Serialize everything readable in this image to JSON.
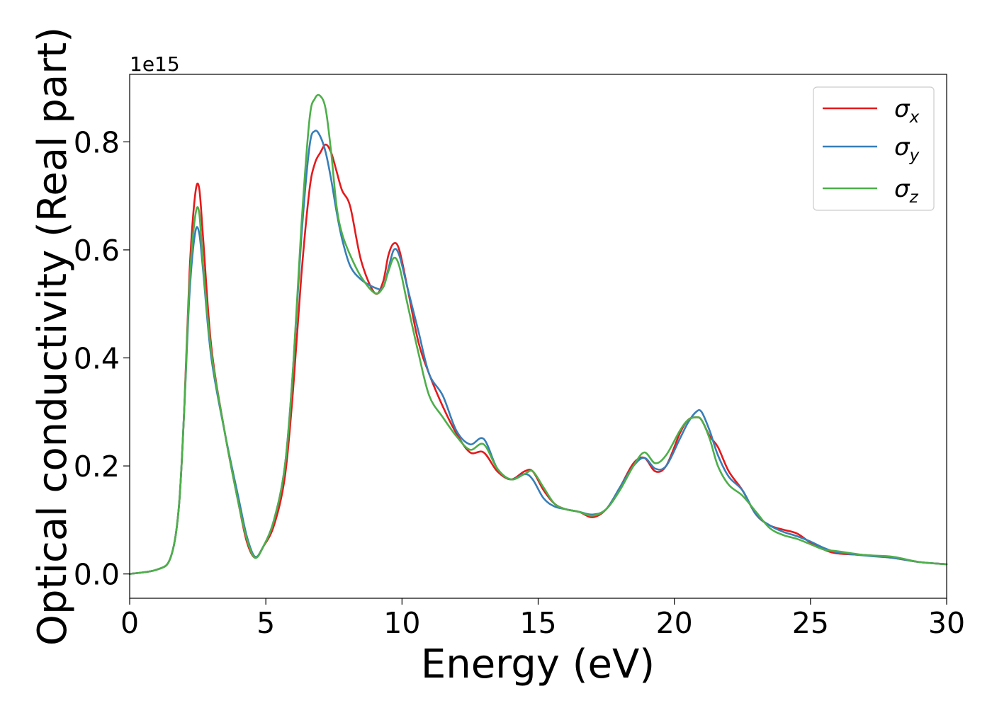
{
  "chart_data": {
    "type": "line",
    "title": "",
    "xlabel": "Energy (eV)",
    "ylabel": "Optical conductivity (Real part)",
    "y_offset_label": "1e15",
    "xlim": [
      0,
      30
    ],
    "ylim": [
      -0.045,
      0.925
    ],
    "x_ticks": [
      0,
      5,
      10,
      15,
      20,
      25,
      30
    ],
    "y_ticks": [
      0.0,
      0.2,
      0.4,
      0.6,
      0.8
    ],
    "x_tick_labels": [
      "0",
      "5",
      "10",
      "15",
      "20",
      "25",
      "30"
    ],
    "y_tick_labels": [
      "0.0",
      "0.2",
      "0.4",
      "0.6",
      "0.8"
    ],
    "grid": false,
    "legend_position": "top-right",
    "series": [
      {
        "name": "σx",
        "symbol": "σ",
        "subscript": "x",
        "color": "#e41a1c",
        "x": [
          0,
          1,
          1.5,
          1.8,
          2.0,
          2.2,
          2.4,
          2.55,
          2.7,
          3.0,
          3.5,
          4.0,
          4.3,
          4.6,
          4.9,
          5.3,
          5.7,
          6.0,
          6.3,
          6.6,
          6.8,
          7.0,
          7.2,
          7.4,
          7.6,
          7.8,
          8.1,
          8.5,
          9.0,
          9.3,
          9.5,
          9.7,
          9.9,
          10.2,
          10.6,
          11.0,
          11.5,
          12.0,
          12.5,
          13.0,
          13.5,
          14.0,
          14.5,
          14.8,
          15.2,
          15.6,
          16.0,
          16.5,
          17.0,
          17.5,
          18.0,
          18.5,
          18.9,
          19.3,
          19.7,
          20.2,
          20.5,
          20.8,
          21.0,
          21.3,
          21.6,
          22.0,
          22.5,
          23.0,
          23.5,
          24.0,
          24.5,
          25.0,
          25.5,
          26.0,
          27.0,
          28.0,
          29.0,
          30.0
        ],
        "y": [
          0.0,
          0.008,
          0.03,
          0.12,
          0.3,
          0.56,
          0.7,
          0.715,
          0.62,
          0.42,
          0.26,
          0.13,
          0.06,
          0.03,
          0.05,
          0.09,
          0.18,
          0.34,
          0.55,
          0.71,
          0.76,
          0.78,
          0.795,
          0.78,
          0.745,
          0.71,
          0.68,
          0.58,
          0.52,
          0.54,
          0.59,
          0.612,
          0.6,
          0.53,
          0.43,
          0.37,
          0.31,
          0.26,
          0.225,
          0.225,
          0.19,
          0.175,
          0.19,
          0.19,
          0.155,
          0.13,
          0.12,
          0.115,
          0.105,
          0.12,
          0.16,
          0.205,
          0.215,
          0.19,
          0.2,
          0.26,
          0.285,
          0.29,
          0.285,
          0.255,
          0.235,
          0.19,
          0.155,
          0.11,
          0.09,
          0.082,
          0.075,
          0.058,
          0.045,
          0.038,
          0.035,
          0.03,
          0.022,
          0.018
        ]
      },
      {
        "name": "σy",
        "symbol": "σ",
        "subscript": "y",
        "color": "#377eb8",
        "x": [
          0,
          1,
          1.5,
          1.8,
          2.0,
          2.2,
          2.4,
          2.55,
          2.7,
          3.0,
          3.5,
          4.0,
          4.3,
          4.6,
          4.9,
          5.3,
          5.7,
          6.0,
          6.3,
          6.6,
          6.8,
          7.0,
          7.2,
          7.4,
          7.6,
          7.8,
          8.1,
          8.5,
          9.0,
          9.3,
          9.5,
          9.7,
          9.9,
          10.2,
          10.6,
          11.0,
          11.5,
          12.0,
          12.5,
          13.0,
          13.5,
          14.0,
          14.5,
          14.8,
          15.2,
          15.6,
          16.0,
          16.5,
          17.0,
          17.5,
          18.0,
          18.5,
          18.9,
          19.3,
          19.7,
          20.2,
          20.5,
          20.8,
          21.0,
          21.3,
          21.6,
          22.0,
          22.5,
          23.0,
          23.5,
          24.0,
          24.5,
          25.0,
          25.5,
          26.0,
          27.0,
          28.0,
          29.0,
          30.0
        ],
        "y": [
          0.0,
          0.008,
          0.03,
          0.12,
          0.3,
          0.52,
          0.63,
          0.632,
          0.56,
          0.4,
          0.26,
          0.14,
          0.07,
          0.032,
          0.05,
          0.1,
          0.2,
          0.38,
          0.62,
          0.79,
          0.82,
          0.81,
          0.78,
          0.73,
          0.67,
          0.62,
          0.57,
          0.545,
          0.53,
          0.53,
          0.565,
          0.6,
          0.59,
          0.53,
          0.45,
          0.37,
          0.33,
          0.265,
          0.24,
          0.25,
          0.195,
          0.175,
          0.185,
          0.175,
          0.14,
          0.125,
          0.12,
          0.115,
          0.11,
          0.12,
          0.16,
          0.2,
          0.215,
          0.195,
          0.2,
          0.25,
          0.28,
          0.3,
          0.3,
          0.265,
          0.22,
          0.18,
          0.155,
          0.11,
          0.09,
          0.078,
          0.07,
          0.06,
          0.048,
          0.04,
          0.034,
          0.03,
          0.022,
          0.018
        ]
      },
      {
        "name": "σz",
        "symbol": "σ",
        "subscript": "z",
        "color": "#4daf4a",
        "x": [
          0,
          1,
          1.5,
          1.8,
          2.0,
          2.2,
          2.4,
          2.55,
          2.7,
          3.0,
          3.5,
          4.0,
          4.3,
          4.6,
          4.9,
          5.3,
          5.7,
          6.0,
          6.3,
          6.6,
          6.8,
          7.0,
          7.2,
          7.4,
          7.6,
          7.8,
          8.1,
          8.5,
          9.0,
          9.3,
          9.5,
          9.7,
          9.9,
          10.2,
          10.6,
          11.0,
          11.5,
          12.0,
          12.5,
          13.0,
          13.5,
          14.0,
          14.5,
          14.8,
          15.2,
          15.6,
          16.0,
          16.5,
          17.0,
          17.5,
          18.0,
          18.5,
          18.9,
          19.3,
          19.7,
          20.2,
          20.5,
          20.8,
          21.0,
          21.3,
          21.6,
          22.0,
          22.5,
          23.0,
          23.5,
          24.0,
          24.5,
          25.0,
          25.5,
          26.0,
          27.0,
          28.0,
          29.0,
          30.0
        ],
        "y": [
          0.0,
          0.008,
          0.03,
          0.12,
          0.3,
          0.54,
          0.66,
          0.67,
          0.57,
          0.41,
          0.26,
          0.13,
          0.065,
          0.03,
          0.05,
          0.1,
          0.2,
          0.38,
          0.64,
          0.84,
          0.88,
          0.885,
          0.86,
          0.78,
          0.68,
          0.63,
          0.59,
          0.55,
          0.52,
          0.53,
          0.56,
          0.585,
          0.57,
          0.5,
          0.41,
          0.33,
          0.29,
          0.255,
          0.23,
          0.24,
          0.195,
          0.175,
          0.185,
          0.19,
          0.16,
          0.13,
          0.12,
          0.115,
          0.108,
          0.12,
          0.155,
          0.2,
          0.225,
          0.205,
          0.22,
          0.265,
          0.285,
          0.29,
          0.285,
          0.25,
          0.2,
          0.165,
          0.145,
          0.115,
          0.085,
          0.072,
          0.065,
          0.055,
          0.045,
          0.042,
          0.035,
          0.032,
          0.022,
          0.018
        ]
      }
    ]
  }
}
